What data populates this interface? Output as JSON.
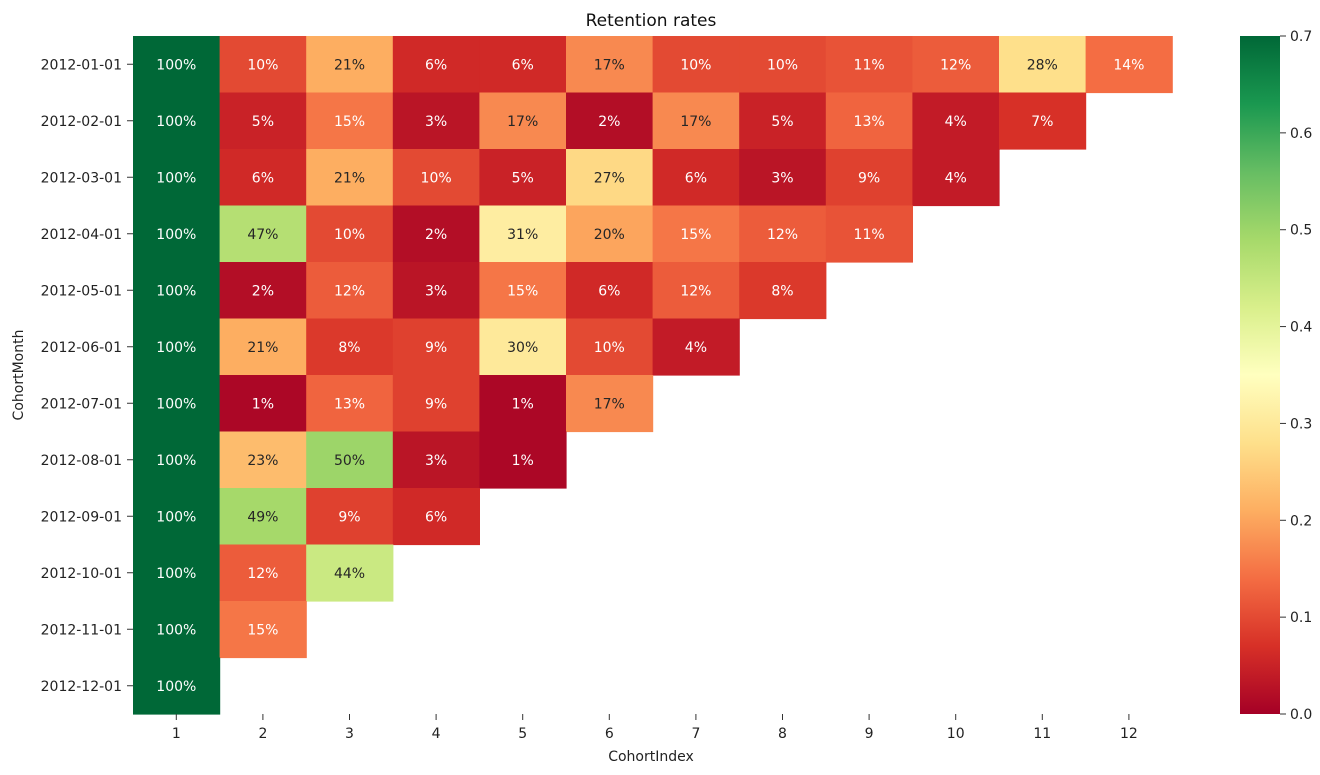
{
  "chart_data": {
    "type": "heatmap",
    "title": "Retention rates",
    "xlabel": "CohortIndex",
    "ylabel": "CohortMonth",
    "x_categories": [
      "1",
      "2",
      "3",
      "4",
      "5",
      "6",
      "7",
      "8",
      "9",
      "10",
      "11",
      "12"
    ],
    "y_categories": [
      "2012-01-01",
      "2012-02-01",
      "2012-03-01",
      "2012-04-01",
      "2012-05-01",
      "2012-06-01",
      "2012-07-01",
      "2012-08-01",
      "2012-09-01",
      "2012-10-01",
      "2012-11-01",
      "2012-12-01"
    ],
    "values": [
      [
        1.0,
        0.1,
        0.21,
        0.06,
        0.06,
        0.17,
        0.1,
        0.1,
        0.11,
        0.12,
        0.28,
        0.14
      ],
      [
        1.0,
        0.05,
        0.15,
        0.03,
        0.17,
        0.02,
        0.17,
        0.05,
        0.13,
        0.04,
        0.07
      ],
      [
        1.0,
        0.06,
        0.21,
        0.1,
        0.05,
        0.27,
        0.06,
        0.03,
        0.09,
        0.04
      ],
      [
        1.0,
        0.47,
        0.1,
        0.02,
        0.31,
        0.2,
        0.15,
        0.12,
        0.11
      ],
      [
        1.0,
        0.02,
        0.12,
        0.03,
        0.15,
        0.06,
        0.12,
        0.08
      ],
      [
        1.0,
        0.21,
        0.08,
        0.09,
        0.3,
        0.1,
        0.04
      ],
      [
        1.0,
        0.01,
        0.13,
        0.09,
        0.01,
        0.17
      ],
      [
        1.0,
        0.23,
        0.5,
        0.03,
        0.01
      ],
      [
        1.0,
        0.49,
        0.09,
        0.06
      ],
      [
        1.0,
        0.12,
        0.44
      ],
      [
        1.0,
        0.15
      ],
      [
        1.0
      ]
    ],
    "labels": [
      [
        "100%",
        "10%",
        "21%",
        "6%",
        "6%",
        "17%",
        "10%",
        "10%",
        "11%",
        "12%",
        "28%",
        "14%"
      ],
      [
        "100%",
        "5%",
        "15%",
        "3%",
        "17%",
        "2%",
        "17%",
        "5%",
        "13%",
        "4%",
        "7%"
      ],
      [
        "100%",
        "6%",
        "21%",
        "10%",
        "5%",
        "27%",
        "6%",
        "3%",
        "9%",
        "4%"
      ],
      [
        "100%",
        "47%",
        "10%",
        "2%",
        "31%",
        "20%",
        "15%",
        "12%",
        "11%"
      ],
      [
        "100%",
        "2%",
        "12%",
        "3%",
        "15%",
        "6%",
        "12%",
        "8%"
      ],
      [
        "100%",
        "21%",
        "8%",
        "9%",
        "30%",
        "10%",
        "4%"
      ],
      [
        "100%",
        "1%",
        "13%",
        "9%",
        "1%",
        "17%"
      ],
      [
        "100%",
        "23%",
        "50%",
        "3%",
        "1%"
      ],
      [
        "100%",
        "49%",
        "9%",
        "6%"
      ],
      [
        "100%",
        "12%",
        "44%"
      ],
      [
        "100%",
        "15%"
      ],
      [
        "100%"
      ]
    ],
    "colormap": "RdYlGn",
    "vmin": 0.0,
    "vmax": 0.7,
    "colorbar_ticks": [
      "0.0",
      "0.1",
      "0.2",
      "0.3",
      "0.4",
      "0.5",
      "0.6",
      "0.7"
    ],
    "colorbar_position": "right",
    "grid": false,
    "colors": {
      "stops": [
        "#a50026",
        "#d73027",
        "#f46d43",
        "#fdae61",
        "#fee08b",
        "#ffffbf",
        "#d9ef8b",
        "#a6d96a",
        "#66bd63",
        "#1a9850",
        "#006837"
      ]
    }
  }
}
